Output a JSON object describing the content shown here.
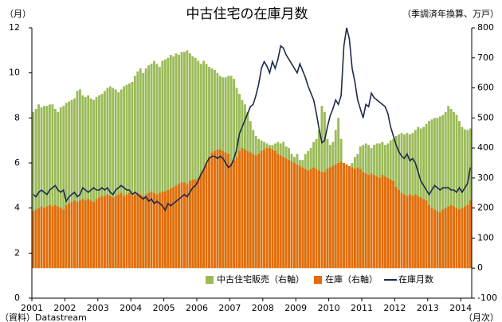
{
  "chart_data": {
    "type": "bar-line",
    "title": "中古住宅の在庫月数",
    "y_label": "（月）",
    "y2_label": "（季調済年換算、万戸）",
    "source": "（資料）Datastream",
    "x_note": "（月次）",
    "categories": [
      "2001",
      null,
      null,
      null,
      null,
      null,
      null,
      null,
      null,
      null,
      null,
      null,
      "2002",
      null,
      null,
      null,
      null,
      null,
      null,
      null,
      null,
      null,
      null,
      null,
      "2003",
      null,
      null,
      null,
      null,
      null,
      null,
      null,
      null,
      null,
      null,
      null,
      "2004",
      null,
      null,
      null,
      null,
      null,
      null,
      null,
      null,
      null,
      null,
      null,
      "2005",
      null,
      null,
      null,
      null,
      null,
      null,
      null,
      null,
      null,
      null,
      null,
      "2006",
      null,
      null,
      null,
      null,
      null,
      null,
      null,
      null,
      null,
      null,
      null,
      "2007",
      null,
      null,
      null,
      null,
      null,
      null,
      null,
      null,
      null,
      null,
      null,
      "2008",
      null,
      null,
      null,
      null,
      null,
      null,
      null,
      null,
      null,
      null,
      null,
      "2009",
      null,
      null,
      null,
      null,
      null,
      null,
      null,
      null,
      null,
      null,
      null,
      "2010",
      null,
      null,
      null,
      null,
      null,
      null,
      null,
      null,
      null,
      null,
      null,
      "2011",
      null,
      null,
      null,
      null,
      null,
      null,
      null,
      null,
      null,
      null,
      null,
      "2012",
      null,
      null,
      null,
      null,
      null,
      null,
      null,
      null,
      null,
      null,
      null,
      "2013",
      null,
      null,
      null,
      null,
      null,
      null,
      null,
      null,
      null,
      null,
      null,
      "2014",
      null,
      null,
      null
    ],
    "series": [
      {
        "name": "中古住宅販売（右軸）",
        "kind": "bar",
        "axis": "y2",
        "color": "#9bbb59",
        "values": [
          520,
          530,
          545,
          535,
          540,
          540,
          545,
          545,
          530,
          520,
          535,
          540,
          550,
          555,
          560,
          565,
          590,
          595,
          575,
          570,
          575,
          565,
          560,
          570,
          575,
          580,
          590,
          600,
          605,
          600,
          595,
          585,
          595,
          605,
          610,
          615,
          620,
          640,
          655,
          665,
          650,
          665,
          675,
          680,
          690,
          680,
          670,
          690,
          695,
          700,
          710,
          705,
          715,
          710,
          720,
          720,
          725,
          715,
          705,
          700,
          690,
          680,
          690,
          680,
          670,
          665,
          660,
          650,
          640,
          635,
          635,
          640,
          640,
          630,
          600,
          580,
          560,
          545,
          520,
          490,
          460,
          440,
          430,
          425,
          420,
          415,
          410,
          410,
          415,
          420,
          415,
          420,
          405,
          400,
          380,
          370,
          380,
          360,
          360,
          380,
          390,
          400,
          420,
          430,
          460,
          540,
          520,
          430,
          410,
          420,
          460,
          500,
          430,
          310,
          320,
          330,
          350,
          370,
          380,
          405,
          410,
          415,
          410,
          400,
          410,
          415,
          415,
          420,
          410,
          415,
          425,
          430,
          440,
          445,
          450,
          445,
          450,
          445,
          450,
          460,
          470,
          465,
          470,
          480,
          490,
          495,
          500,
          500,
          505,
          510,
          520,
          540,
          530,
          520,
          510,
          490,
          470,
          462,
          460,
          465
        ]
      },
      {
        "name": "在庫（右軸）",
        "kind": "bar",
        "axis": "y2",
        "color": "#e46c0a",
        "values": [
          190,
          195,
          200,
          205,
          200,
          205,
          210,
          205,
          210,
          205,
          200,
          195,
          210,
          215,
          220,
          225,
          220,
          225,
          230,
          225,
          230,
          225,
          220,
          230,
          235,
          240,
          240,
          245,
          240,
          235,
          240,
          245,
          250,
          240,
          245,
          250,
          240,
          245,
          250,
          245,
          240,
          245,
          250,
          255,
          250,
          245,
          250,
          255,
          255,
          260,
          265,
          270,
          275,
          280,
          285,
          285,
          280,
          290,
          295,
          295,
          300,
          315,
          330,
          350,
          370,
          385,
          390,
          395,
          395,
          390,
          385,
          380,
          350,
          360,
          370,
          390,
          400,
          395,
          390,
          385,
          380,
          375,
          380,
          390,
          395,
          400,
          400,
          395,
          390,
          380,
          375,
          370,
          365,
          360,
          355,
          350,
          345,
          340,
          335,
          330,
          325,
          330,
          335,
          330,
          325,
          320,
          320,
          330,
          335,
          340,
          345,
          350,
          355,
          350,
          345,
          340,
          335,
          330,
          335,
          330,
          320,
          315,
          310,
          315,
          310,
          305,
          300,
          310,
          305,
          300,
          295,
          290,
          270,
          260,
          250,
          245,
          240,
          245,
          240,
          245,
          240,
          235,
          230,
          225,
          210,
          200,
          195,
          190,
          185,
          195,
          200,
          205,
          210,
          205,
          200,
          195,
          200,
          205,
          210,
          225
        ]
      },
      {
        "name": "在庫月数",
        "kind": "line",
        "axis": "y",
        "color": "#1f2a4f",
        "values": [
          4.6,
          4.5,
          4.7,
          4.8,
          4.7,
          4.6,
          4.8,
          4.9,
          5.0,
          4.8,
          4.7,
          4.8,
          4.3,
          4.5,
          4.6,
          4.7,
          4.5,
          4.6,
          4.9,
          4.8,
          4.7,
          4.8,
          4.9,
          4.8,
          4.8,
          4.9,
          4.8,
          4.9,
          4.7,
          4.6,
          4.8,
          4.9,
          5.0,
          4.9,
          4.8,
          4.8,
          4.6,
          4.7,
          4.6,
          4.5,
          4.4,
          4.5,
          4.3,
          4.4,
          4.2,
          4.3,
          4.2,
          4.1,
          3.9,
          4.2,
          4.1,
          4.2,
          4.3,
          4.4,
          4.5,
          4.6,
          4.5,
          4.7,
          4.9,
          5.0,
          5.2,
          5.5,
          5.7,
          6.0,
          6.2,
          6.3,
          6.3,
          6.2,
          6.3,
          6.2,
          6.0,
          5.8,
          5.9,
          6.2,
          6.6,
          7.3,
          7.6,
          7.9,
          8.2,
          8.5,
          8.6,
          9.0,
          9.5,
          10.2,
          10.5,
          10.3,
          10.0,
          10.5,
          10.2,
          10.6,
          11.2,
          11.1,
          10.8,
          10.6,
          10.4,
          10.2,
          10.0,
          10.4,
          10.1,
          9.8,
          9.4,
          9.1,
          8.8,
          8.2,
          7.5,
          6.9,
          7.0,
          7.6,
          8.1,
          8.4,
          8.8,
          8.6,
          9.0,
          11.2,
          12.0,
          11.5,
          10.2,
          9.6,
          8.8,
          8.4,
          8.0,
          8.6,
          8.5,
          9.1,
          8.9,
          8.8,
          8.7,
          8.6,
          8.5,
          8.2,
          7.6,
          7.2,
          6.8,
          6.5,
          6.3,
          6.2,
          6.4,
          6.1,
          6.2,
          6.0,
          5.6,
          5.2,
          5.0,
          4.8,
          4.6,
          4.8,
          5.0,
          4.9,
          4.8,
          4.9,
          4.9,
          4.9,
          4.8,
          4.8,
          4.7,
          4.9,
          4.7,
          4.9,
          5.1,
          5.8
        ]
      }
    ],
    "ylim": [
      0,
      12
    ],
    "yticks": [
      0,
      2,
      4,
      6,
      8,
      10,
      12
    ],
    "y2lim": [
      -100,
      800
    ],
    "y2ticks": [
      -100,
      0,
      100,
      200,
      300,
      400,
      500,
      600,
      700,
      800
    ],
    "legend": "lower right"
  }
}
